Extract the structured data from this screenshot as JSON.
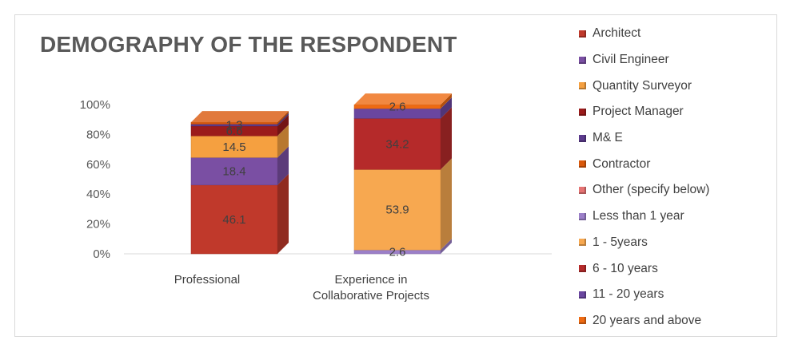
{
  "chart_data": {
    "type": "bar",
    "title": "DEMOGRAPHY OF THE RESPONDENT",
    "stacked": true,
    "normalized_percent": true,
    "three_d": true,
    "ylim": [
      0,
      100
    ],
    "yticks": [
      "0%",
      "20%",
      "40%",
      "60%",
      "80%",
      "100%"
    ],
    "categories": [
      [
        "Professional"
      ],
      [
        "Experience in",
        "Collaborative Projects"
      ]
    ],
    "legend_position": "right",
    "series": [
      {
        "name": "Architect",
        "color": "#c0392b",
        "values": [
          46.1,
          null
        ]
      },
      {
        "name": "Civil Engineer",
        "color": "#7a4fa3",
        "values": [
          18.4,
          null
        ]
      },
      {
        "name": "Quantity Surveyor",
        "color": "#f5a040",
        "values": [
          14.5,
          null
        ]
      },
      {
        "name": "Project Manager",
        "color": "#9b1b1b",
        "values": [
          6.6,
          null
        ]
      },
      {
        "name": "M& E",
        "color": "#5b3a8c",
        "values": [
          1.3,
          null
        ]
      },
      {
        "name": "Contractor",
        "color": "#d9580b",
        "values": [
          1.3,
          null
        ]
      },
      {
        "name": "Other (specify below)",
        "color": "#e57373",
        "values": [
          null,
          null
        ]
      },
      {
        "name": "Less than 1 year",
        "color": "#9b7fc8",
        "values": [
          null,
          2.6
        ]
      },
      {
        "name": "1 - 5years",
        "color": "#f7a850",
        "values": [
          null,
          53.9
        ]
      },
      {
        "name": "6 - 10 years",
        "color": "#b52a2a",
        "values": [
          null,
          34.2
        ]
      },
      {
        "name": "11 - 20 years",
        "color": "#6a46a0",
        "values": [
          null,
          6.6
        ]
      },
      {
        "name": "20 years and above",
        "color": "#ee6a12",
        "values": [
          null,
          2.6
        ]
      }
    ],
    "data_labels": [
      [
        "46.1",
        "18.4",
        "14.5",
        "6.6",
        "1.3",
        null,
        null,
        null,
        null,
        null,
        null,
        null
      ],
      [
        null,
        null,
        null,
        null,
        null,
        null,
        null,
        "2.6",
        "53.9",
        "34.2",
        null,
        "2.6"
      ]
    ]
  }
}
